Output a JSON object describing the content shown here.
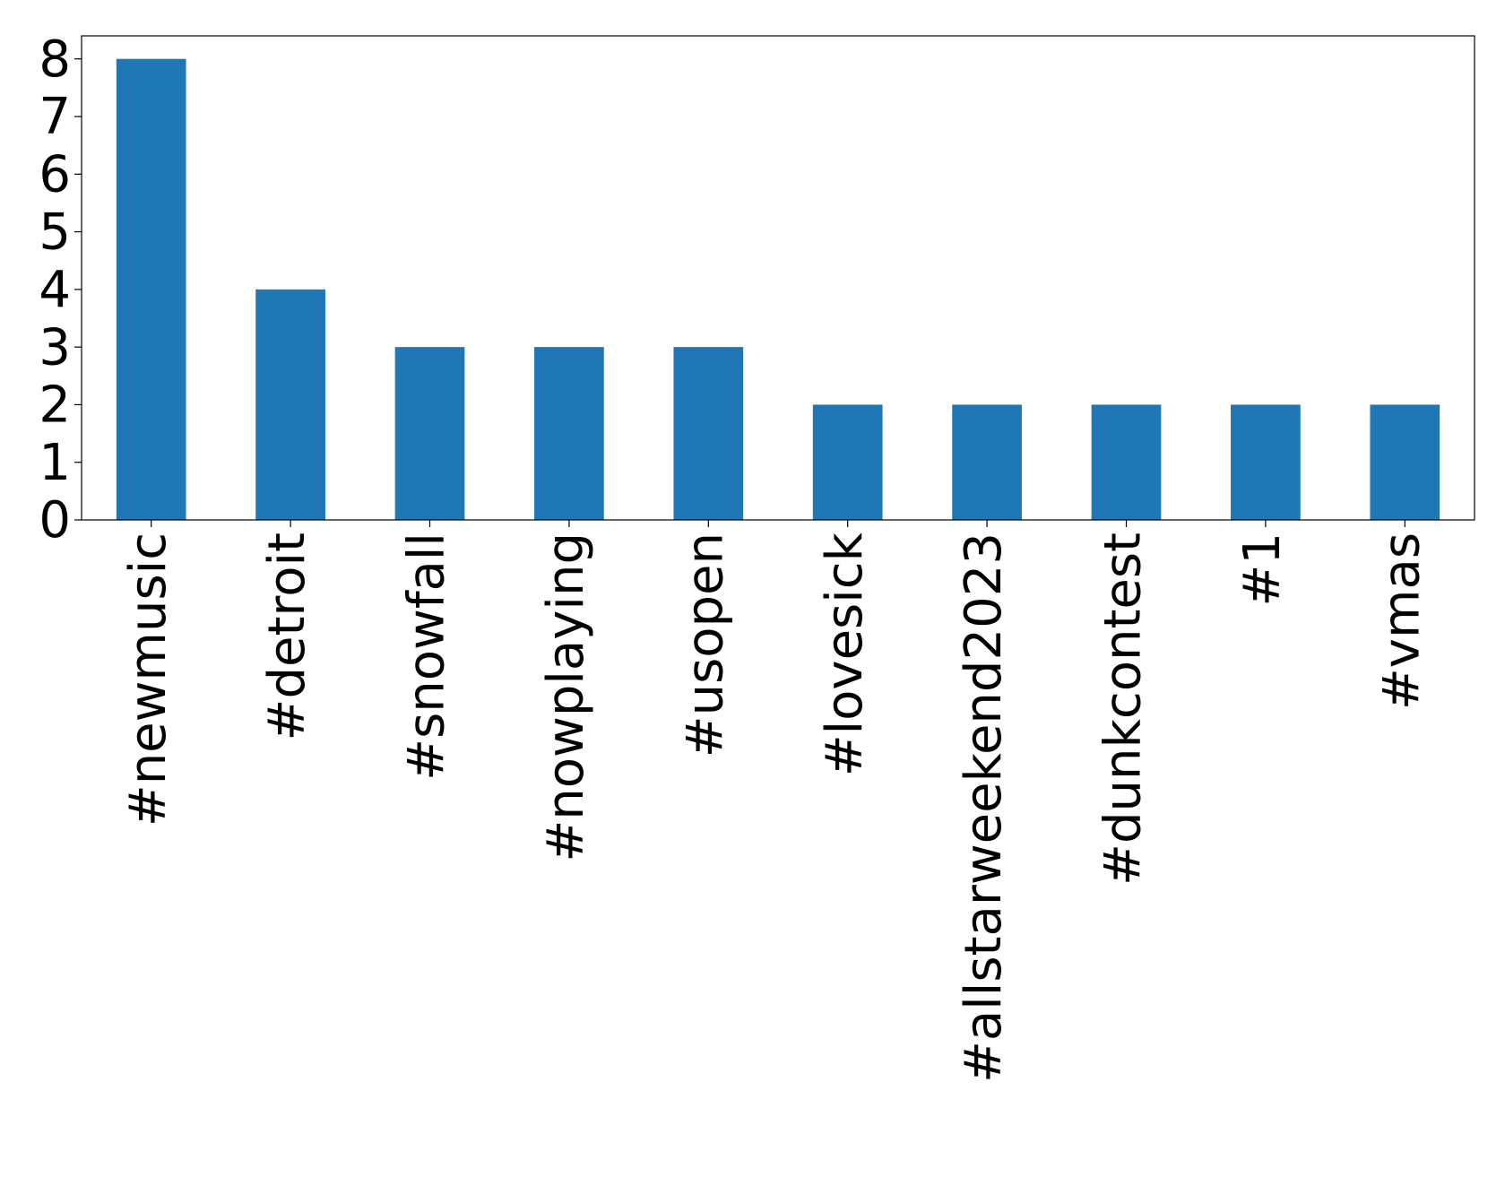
{
  "chart_data": {
    "type": "bar",
    "categories": [
      "#newmusic",
      "#detroit",
      "#snowfall",
      "#nowplaying",
      "#usopen",
      "#lovesick",
      "#allstarweekend2023",
      "#dunkcontest",
      "#1",
      "#vmas"
    ],
    "values": [
      8,
      4,
      3,
      3,
      3,
      2,
      2,
      2,
      2,
      2
    ],
    "color": "#1f77b4",
    "ylim": [
      0,
      8.4
    ],
    "yticks": [
      0,
      1,
      2,
      3,
      4,
      5,
      6,
      7,
      8
    ],
    "grid": false
  }
}
